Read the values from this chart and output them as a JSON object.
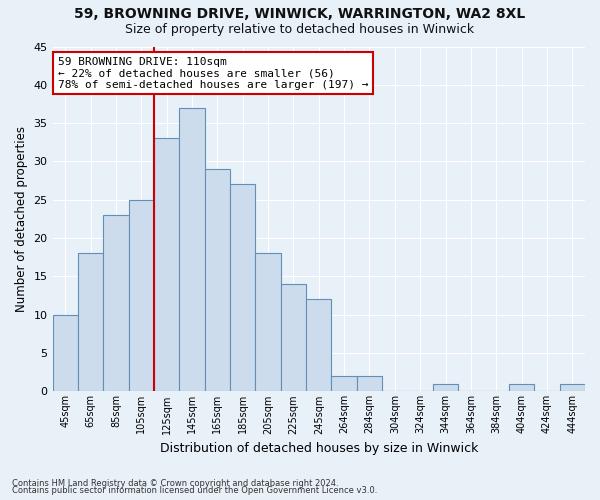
{
  "title": "59, BROWNING DRIVE, WINWICK, WARRINGTON, WA2 8XL",
  "subtitle": "Size of property relative to detached houses in Winwick",
  "xlabel": "Distribution of detached houses by size in Winwick",
  "ylabel": "Number of detached properties",
  "footnote1": "Contains HM Land Registry data © Crown copyright and database right 2024.",
  "footnote2": "Contains public sector information licensed under the Open Government Licence v3.0.",
  "bin_labels": [
    "45sqm",
    "65sqm",
    "85sqm",
    "105sqm",
    "125sqm",
    "145sqm",
    "165sqm",
    "185sqm",
    "205sqm",
    "225sqm",
    "245sqm",
    "264sqm",
    "284sqm",
    "304sqm",
    "324sqm",
    "344sqm",
    "364sqm",
    "384sqm",
    "404sqm",
    "424sqm",
    "444sqm"
  ],
  "bar_heights": [
    10,
    18,
    23,
    25,
    33,
    37,
    29,
    27,
    18,
    14,
    12,
    2,
    2,
    0,
    0,
    1,
    0,
    0,
    1,
    0,
    1
  ],
  "bar_color": "#ccdcec",
  "bar_edge_color": "#6090b8",
  "ylim": [
    0,
    45
  ],
  "yticks": [
    0,
    5,
    10,
    15,
    20,
    25,
    30,
    35,
    40,
    45
  ],
  "annotation_title": "59 BROWNING DRIVE: 110sqm",
  "annotation_line1": "← 22% of detached houses are smaller (56)",
  "annotation_line2": "78% of semi-detached houses are larger (197) →",
  "annotation_box_color": "#ffffff",
  "annotation_box_edge": "#cc0000",
  "red_line_color": "#cc0000",
  "background_color": "#e8f0f8",
  "plot_background": "#e8f0f8",
  "grid_color": "#ffffff",
  "title_fontsize": 10,
  "subtitle_fontsize": 9
}
